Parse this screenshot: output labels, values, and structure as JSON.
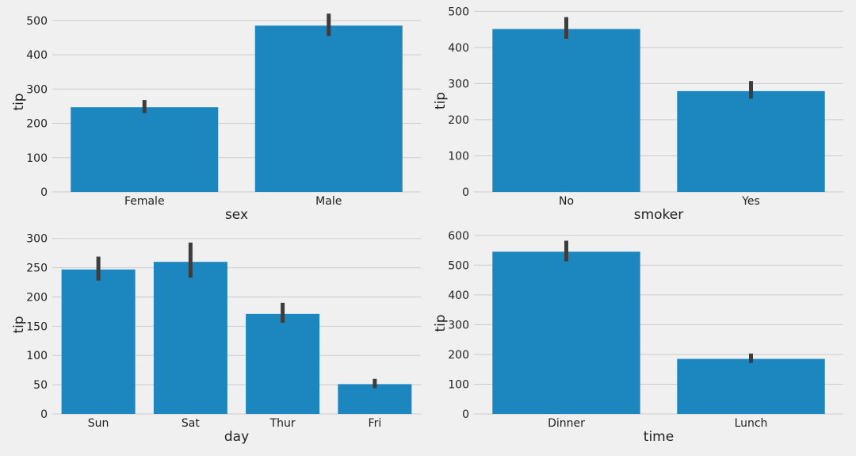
{
  "colors": {
    "background": "#f0f0f0",
    "bar": "#1c86bf",
    "errorbar": "#3d3d3d",
    "grid": "#cbcbcb"
  },
  "chart_data": [
    {
      "type": "bar",
      "categories": [
        "Female",
        "Male"
      ],
      "values": [
        247,
        485
      ],
      "error_low": [
        230,
        455
      ],
      "error_high": [
        268,
        520
      ],
      "xlabel": "sex",
      "ylabel": "tip",
      "yticks": [
        0,
        100,
        200,
        300,
        400,
        500
      ],
      "ylim": [
        0,
        525
      ],
      "grid": true
    },
    {
      "type": "bar",
      "categories": [
        "No",
        "Yes"
      ],
      "values": [
        451,
        279
      ],
      "error_low": [
        424,
        258
      ],
      "error_high": [
        484,
        307
      ],
      "xlabel": "smoker",
      "ylabel": "tip",
      "yticks": [
        0,
        100,
        200,
        300,
        400,
        500
      ],
      "ylim": [
        0,
        505
      ],
      "grid": true
    },
    {
      "type": "bar",
      "categories": [
        "Sun",
        "Sat",
        "Thur",
        "Fri"
      ],
      "values": [
        247,
        260,
        171,
        51
      ],
      "error_low": [
        228,
        233,
        156,
        44
      ],
      "error_high": [
        269,
        293,
        190,
        60
      ],
      "xlabel": "day",
      "ylabel": "tip",
      "yticks": [
        0,
        50,
        100,
        150,
        200,
        250,
        300
      ],
      "ylim": [
        0,
        305
      ],
      "grid": true
    },
    {
      "type": "bar",
      "categories": [
        "Dinner",
        "Lunch"
      ],
      "values": [
        545,
        185
      ],
      "error_low": [
        513,
        171
      ],
      "error_high": [
        582,
        203
      ],
      "xlabel": "time",
      "ylabel": "tip",
      "yticks": [
        0,
        100,
        200,
        300,
        400,
        500,
        600
      ],
      "ylim": [
        0,
        610
      ],
      "grid": true
    }
  ]
}
